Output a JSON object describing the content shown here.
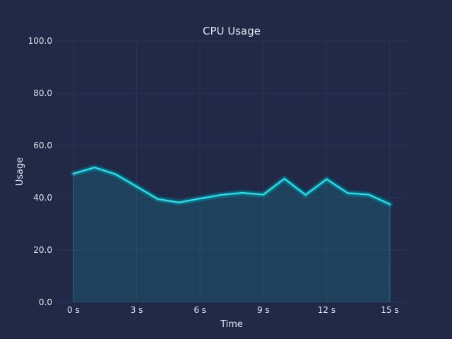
{
  "colors": {
    "background": "#212946",
    "grid": "#2A3459",
    "line": "#08F7FE",
    "fill": "#08F7FE",
    "text": "#E0E4F0"
  },
  "chart_data": {
    "type": "area",
    "title": "CPU Usage",
    "xlabel": "Time",
    "ylabel": "Usage",
    "x": [
      0,
      1,
      2,
      3,
      4,
      5,
      6,
      7,
      8,
      9,
      10,
      11,
      12,
      13,
      14,
      15
    ],
    "series": [
      {
        "values": [
          49.2,
          51.6,
          49.0,
          44.3,
          39.5,
          38.2,
          39.7,
          41.1,
          41.9,
          41.2,
          47.3,
          41.1,
          47.1,
          41.8,
          41.2,
          37.5
        ]
      }
    ],
    "xlim": [
      -0.8,
      15.8
    ],
    "ylim": [
      0,
      100
    ],
    "xticks": [
      {
        "value": 0,
        "label": "0 s"
      },
      {
        "value": 3,
        "label": "3 s"
      },
      {
        "value": 6,
        "label": "6 s"
      },
      {
        "value": 9,
        "label": "9 s"
      },
      {
        "value": 12,
        "label": "12 s"
      },
      {
        "value": 15,
        "label": "15 s"
      }
    ],
    "yticks": [
      {
        "value": 0,
        "label": "0.0"
      },
      {
        "value": 20,
        "label": "20.0"
      },
      {
        "value": 40,
        "label": "40.0"
      },
      {
        "value": 60,
        "label": "60.0"
      },
      {
        "value": 80,
        "label": "80.0"
      },
      {
        "value": 100,
        "label": "100.0"
      }
    ],
    "grid": true,
    "glow": true
  }
}
